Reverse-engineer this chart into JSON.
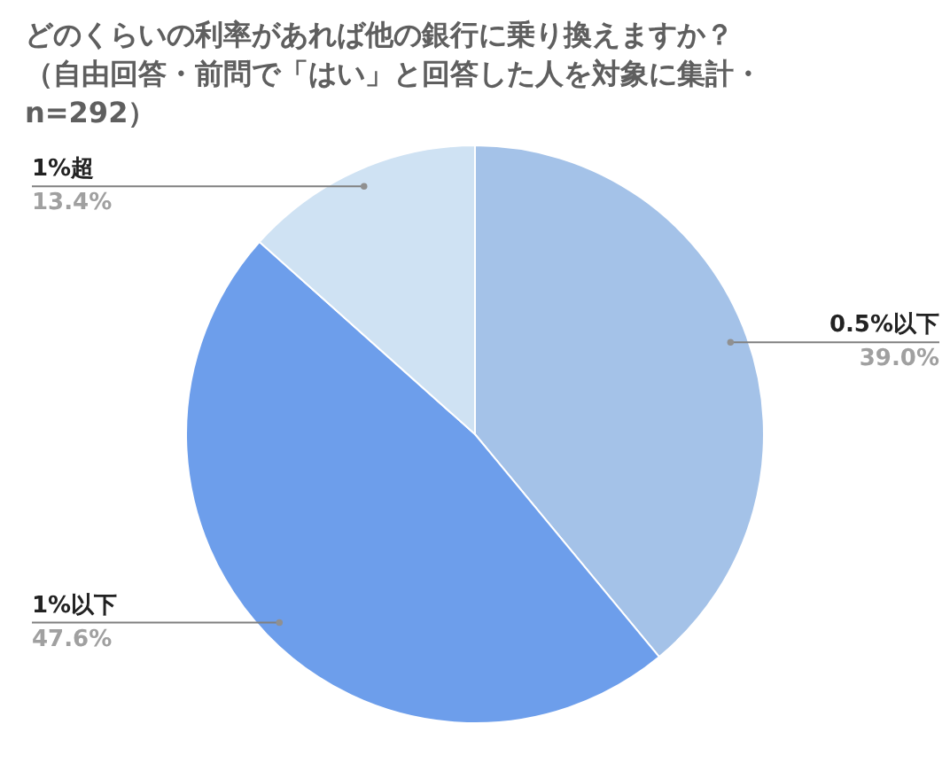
{
  "chart_data": {
    "type": "pie",
    "title": "どのくらいの利率があれば他の銀行に乗り換えますか？（自由回答・前問で「はい」と回答した人を対象に集計・n=292）",
    "categories": [
      "0.5%以下",
      "1%以下",
      "1%超"
    ],
    "values": [
      39.0,
      47.6,
      13.4
    ],
    "value_labels": [
      "39.0%",
      "47.6%",
      "13.4%"
    ],
    "colors": [
      "#a4c2e8",
      "#6d9eeb",
      "#cfe2f3"
    ],
    "legend": false
  }
}
